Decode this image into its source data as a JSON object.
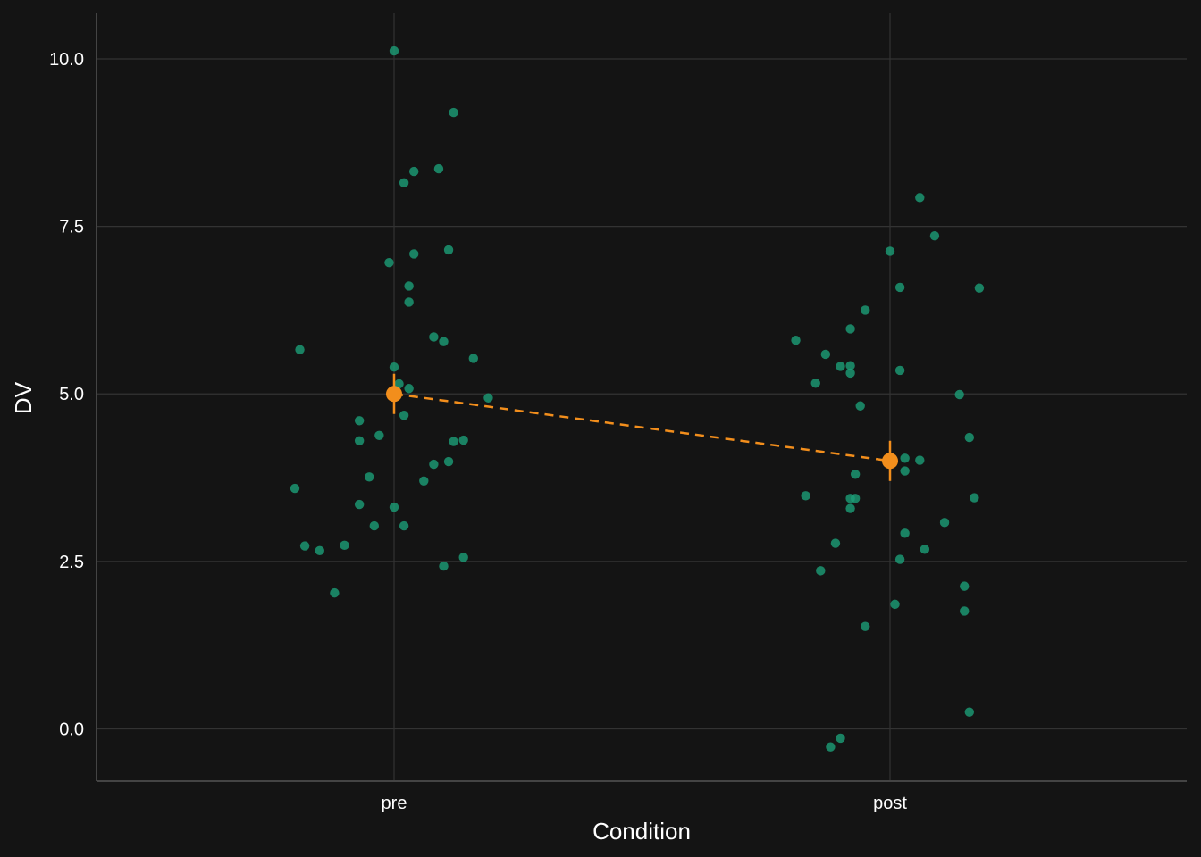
{
  "chart_data": {
    "type": "scatter",
    "title": "",
    "xlabel": "Condition",
    "ylabel": "DV",
    "categories": [
      "pre",
      "post"
    ],
    "ylim": [
      -0.78,
      10.68
    ],
    "yticks": [
      0.0,
      2.5,
      5.0,
      7.5,
      10.0
    ],
    "ytick_labels": [
      "0.0",
      "2.5",
      "5.0",
      "7.5",
      "10.0"
    ],
    "grid": true,
    "legend": "none",
    "colors": {
      "background": "#141414",
      "grid": "#333333",
      "axis": "#444444",
      "points": "#1b9e77",
      "summary": "#f28e1c"
    },
    "series": [
      {
        "category": "pre",
        "points": [
          [
            0.0,
            10.12
          ],
          [
            0.12,
            9.2
          ],
          [
            0.09,
            8.36
          ],
          [
            0.04,
            8.32
          ],
          [
            0.02,
            8.15
          ],
          [
            0.11,
            7.15
          ],
          [
            0.04,
            7.09
          ],
          [
            -0.01,
            6.96
          ],
          [
            0.03,
            6.61
          ],
          [
            0.03,
            6.37
          ],
          [
            0.08,
            5.85
          ],
          [
            0.1,
            5.78
          ],
          [
            -0.19,
            5.66
          ],
          [
            0.16,
            5.53
          ],
          [
            0.0,
            5.4
          ],
          [
            0.01,
            5.15
          ],
          [
            0.03,
            5.08
          ],
          [
            0.19,
            4.94
          ],
          [
            0.02,
            4.68
          ],
          [
            -0.07,
            4.6
          ],
          [
            -0.03,
            4.38
          ],
          [
            0.12,
            4.29
          ],
          [
            -0.07,
            4.3
          ],
          [
            0.14,
            4.31
          ],
          [
            0.11,
            3.99
          ],
          [
            0.08,
            3.95
          ],
          [
            -0.05,
            3.76
          ],
          [
            0.06,
            3.7
          ],
          [
            -0.2,
            3.59
          ],
          [
            -0.07,
            3.35
          ],
          [
            0.0,
            3.31
          ],
          [
            -0.04,
            3.03
          ],
          [
            0.02,
            3.03
          ],
          [
            -0.18,
            2.73
          ],
          [
            -0.1,
            2.74
          ],
          [
            -0.15,
            2.66
          ],
          [
            0.14,
            2.56
          ],
          [
            0.1,
            2.43
          ],
          [
            -0.12,
            2.03
          ]
        ],
        "mean": 5.0,
        "error": [
          4.7,
          5.3
        ]
      },
      {
        "category": "post",
        "points": [
          [
            0.06,
            7.93
          ],
          [
            0.09,
            7.36
          ],
          [
            0.0,
            7.13
          ],
          [
            0.02,
            6.59
          ],
          [
            0.18,
            6.58
          ],
          [
            -0.05,
            6.25
          ],
          [
            -0.08,
            5.97
          ],
          [
            -0.19,
            5.8
          ],
          [
            -0.13,
            5.59
          ],
          [
            -0.1,
            5.41
          ],
          [
            -0.08,
            5.42
          ],
          [
            -0.08,
            5.31
          ],
          [
            0.02,
            5.35
          ],
          [
            -0.15,
            5.16
          ],
          [
            0.14,
            4.99
          ],
          [
            -0.06,
            4.82
          ],
          [
            0.16,
            4.35
          ],
          [
            0.03,
            4.04
          ],
          [
            0.06,
            4.01
          ],
          [
            0.03,
            3.85
          ],
          [
            -0.07,
            3.8
          ],
          [
            -0.17,
            3.48
          ],
          [
            -0.07,
            3.44
          ],
          [
            -0.08,
            3.44
          ],
          [
            0.17,
            3.45
          ],
          [
            -0.08,
            3.29
          ],
          [
            0.11,
            3.08
          ],
          [
            0.03,
            2.92
          ],
          [
            -0.11,
            2.77
          ],
          [
            0.07,
            2.68
          ],
          [
            0.02,
            2.53
          ],
          [
            -0.14,
            2.36
          ],
          [
            0.15,
            2.13
          ],
          [
            0.01,
            1.86
          ],
          [
            0.15,
            1.76
          ],
          [
            -0.05,
            1.53
          ],
          [
            0.16,
            0.25
          ],
          [
            -0.1,
            -0.14
          ],
          [
            -0.12,
            -0.27
          ]
        ],
        "mean": 4.0,
        "error": [
          3.7,
          4.3
        ]
      }
    ]
  }
}
